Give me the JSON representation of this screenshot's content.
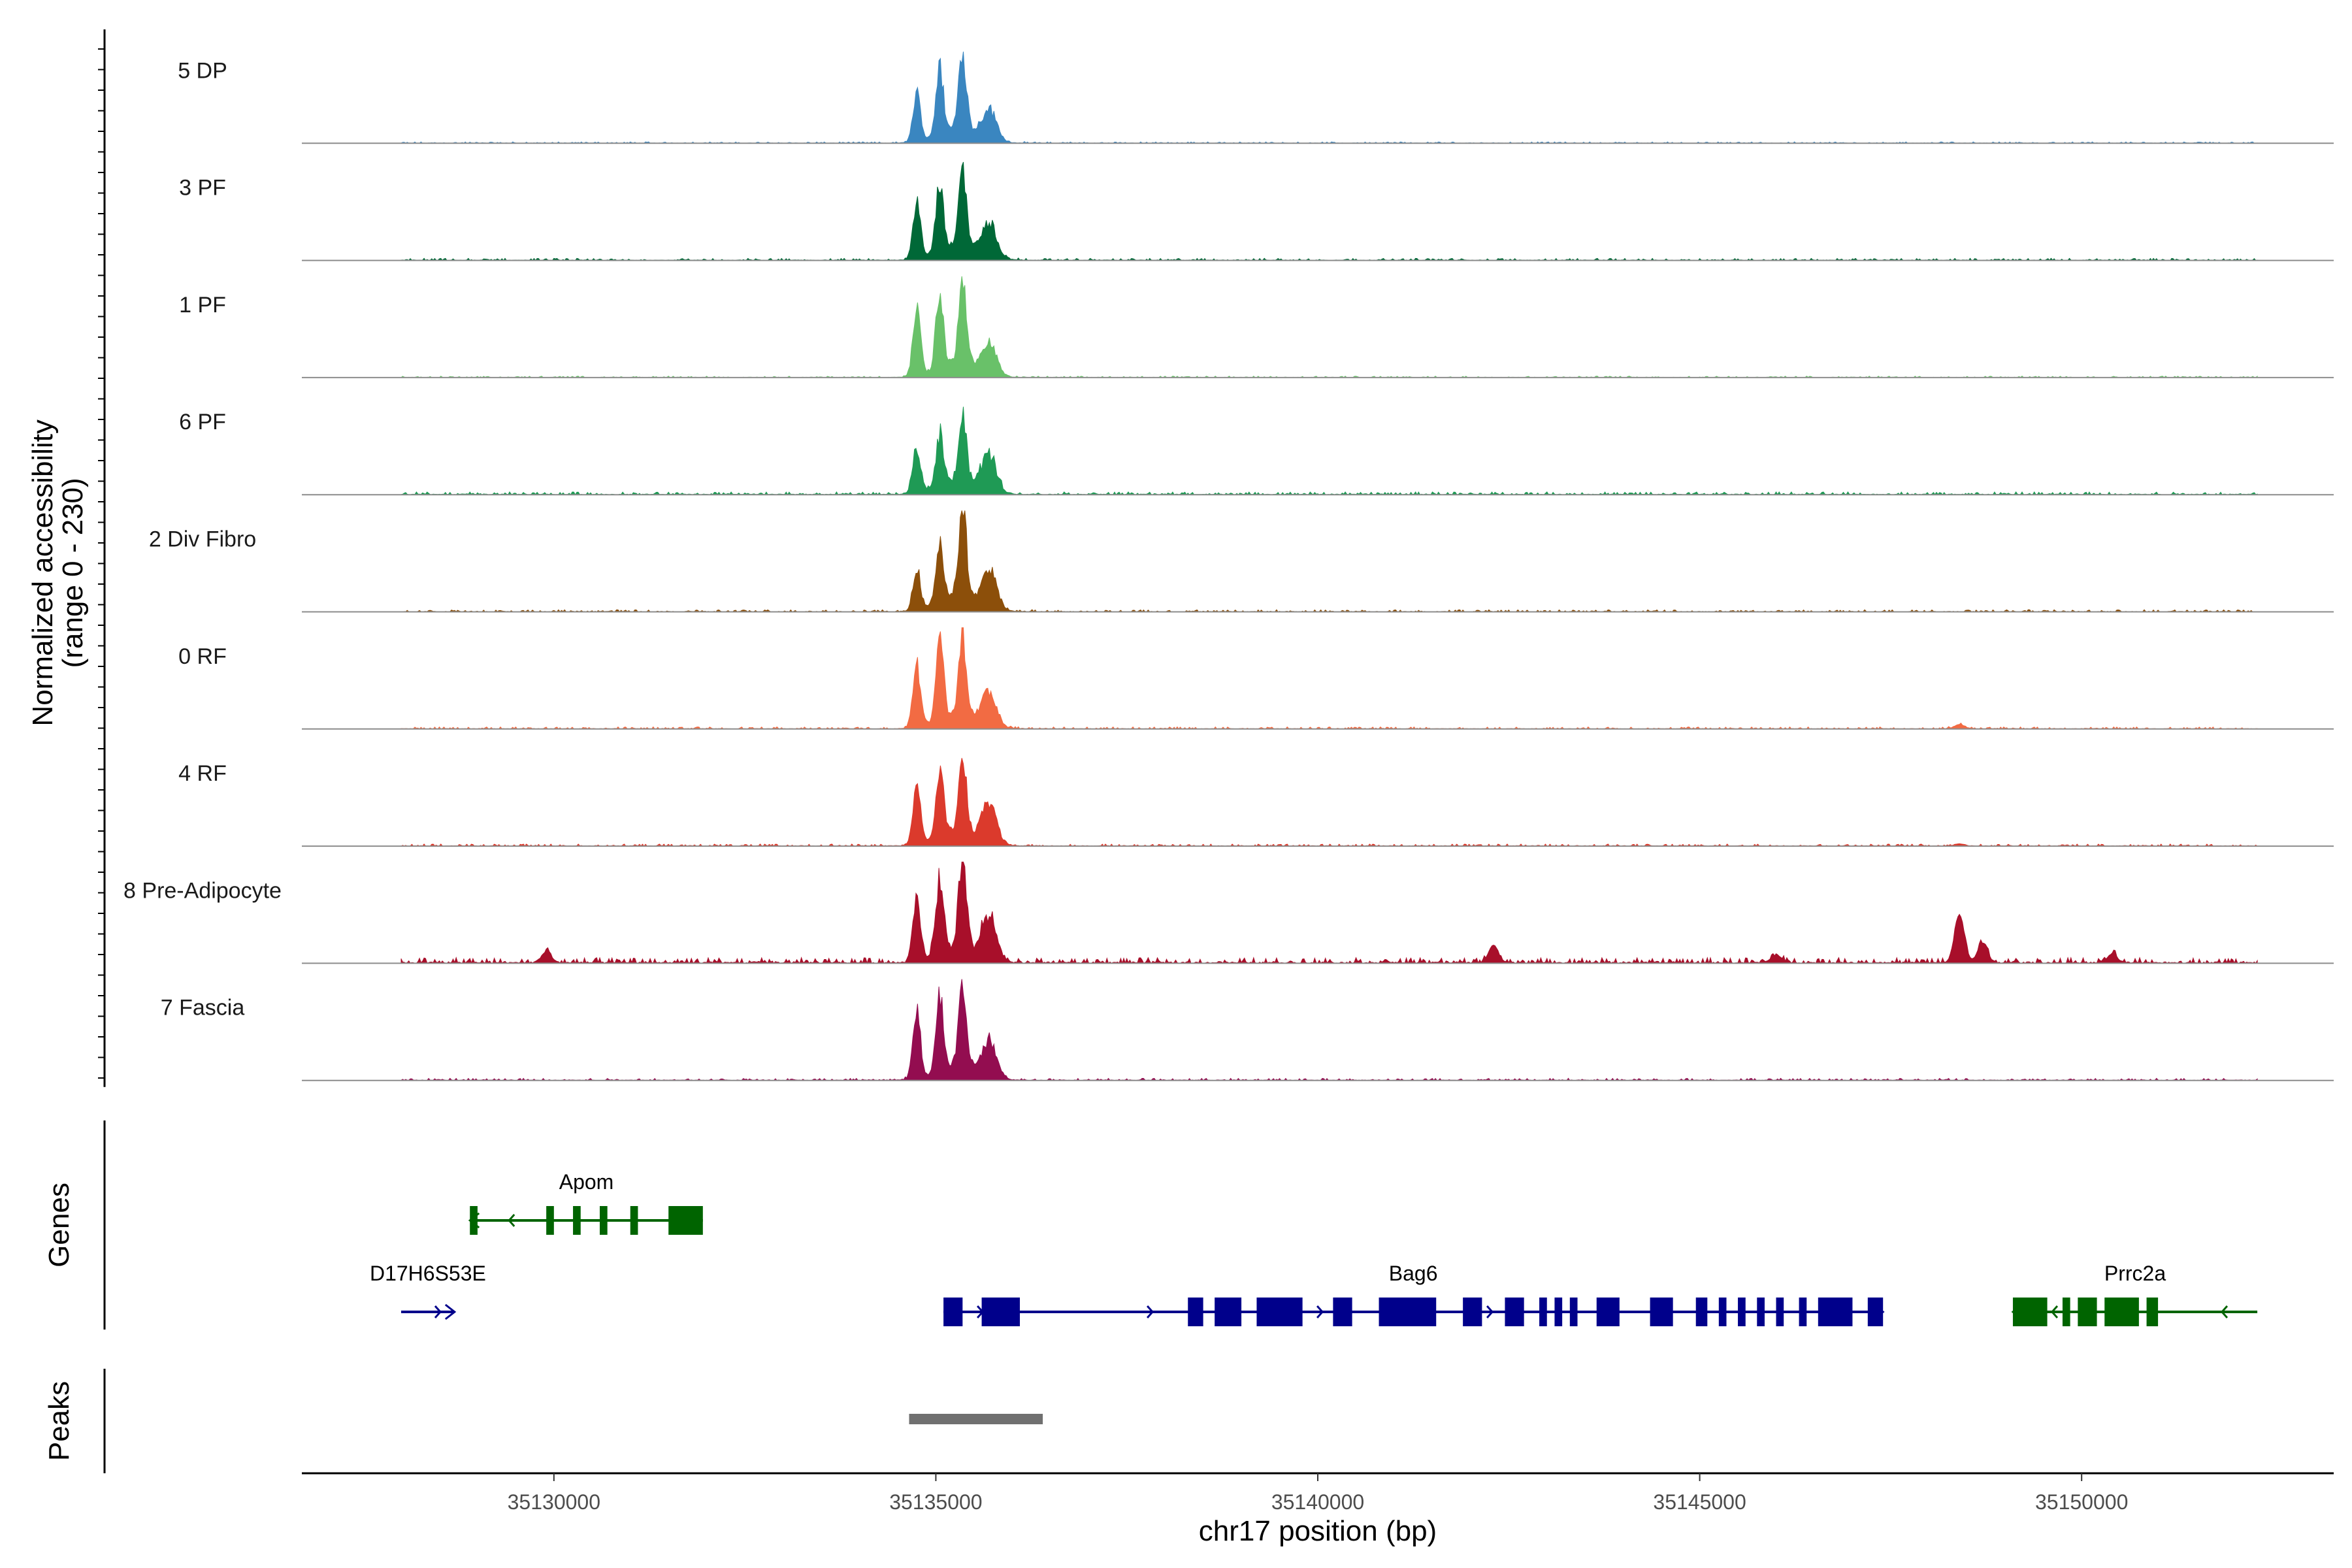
{
  "chart_data": {
    "type": "area",
    "title": "",
    "region": "chr17",
    "xlabel": "chr17 position (bp)",
    "ylabel_line1": "Normalized accessibility",
    "ylabel_line2": "(range 0 - 230)",
    "y_range": [
      0,
      230
    ],
    "x_range": [
      35126700,
      35153300
    ],
    "x_ticks": [
      35130000,
      35135000,
      35140000,
      35145000,
      35150000
    ],
    "x_tick_labels": [
      "35130000",
      "35135000",
      "35140000",
      "35145000",
      "35150000"
    ],
    "peak_summits_bp": [
      35134750,
      35135050,
      35135350,
      35135700
    ],
    "series": [
      {
        "name": "5 DP",
        "color": "#3a86c0",
        "summit_heights": [
          110,
          150,
          185,
          70
        ],
        "bg_level": 2,
        "extra_peaks": []
      },
      {
        "name": "3 PF",
        "color": "#006837",
        "summit_heights": [
          125,
          150,
          185,
          80
        ],
        "bg_level": 3,
        "extra_peaks": []
      },
      {
        "name": "1 PF",
        "color": "#69c169",
        "summit_heights": [
          150,
          170,
          185,
          70
        ],
        "bg_level": 2,
        "extra_peaks": []
      },
      {
        "name": "6 PF",
        "color": "#1f9a55",
        "summit_heights": [
          105,
          120,
          150,
          85
        ],
        "bg_level": 4,
        "extra_peaks": []
      },
      {
        "name": "2 Div Fibro",
        "color": "#8c4f0a",
        "summit_heights": [
          90,
          140,
          230,
          90
        ],
        "bg_level": 3,
        "extra_peaks": []
      },
      {
        "name": "0 RF",
        "color": "#f26b43",
        "summit_heights": [
          140,
          185,
          185,
          75
        ],
        "bg_level": 3,
        "extra_peaks": [
          [
            35148400,
            10
          ]
        ]
      },
      {
        "name": "4 RF",
        "color": "#db3a2c",
        "summit_heights": [
          140,
          165,
          180,
          90
        ],
        "bg_level": 3,
        "extra_peaks": [
          [
            35148400,
            5
          ]
        ]
      },
      {
        "name": "8 Pre-Adipocyte",
        "color": "#a80f2a",
        "summit_heights": [
          150,
          175,
          230,
          100
        ],
        "bg_level": 8,
        "extra_peaks": [
          [
            35129900,
            25
          ],
          [
            35142300,
            40
          ],
          [
            35148400,
            110
          ],
          [
            35148700,
            45
          ],
          [
            35146000,
            18
          ],
          [
            35150400,
            20
          ]
        ]
      },
      {
        "name": "7 Fascia",
        "color": "#930d50",
        "summit_heights": [
          150,
          175,
          185,
          80
        ],
        "bg_level": 3,
        "extra_peaks": []
      }
    ],
    "panels": [
      "Genes",
      "Peaks"
    ],
    "genes": [
      {
        "name": "Apom",
        "start": 35128900,
        "end": 35131950,
        "strand": "-",
        "color": "#006400",
        "row": 1,
        "exons": [
          [
            35128900,
            35129000
          ],
          [
            35129900,
            35130000
          ],
          [
            35130250,
            35130350
          ],
          [
            35130600,
            35130700
          ],
          [
            35131000,
            35131100
          ],
          [
            35131500,
            35131950
          ]
        ]
      },
      {
        "name": "D17H6S53E",
        "start": 35128000,
        "end": 35128700,
        "strand": "+",
        "color": "#00008b",
        "row": 2,
        "exons": []
      },
      {
        "name": "Bag6",
        "start": 35135100,
        "end": 35147400,
        "strand": "+",
        "color": "#00008b",
        "row": 2,
        "exons": [
          [
            35135100,
            35135350
          ],
          [
            35135600,
            35136100
          ],
          [
            35138300,
            35138500
          ],
          [
            35138650,
            35139000
          ],
          [
            35139200,
            35139800
          ],
          [
            35140200,
            35140450
          ],
          [
            35140800,
            35141550
          ],
          [
            35141900,
            35142150
          ],
          [
            35142450,
            35142700
          ],
          [
            35142900,
            35143000
          ],
          [
            35143100,
            35143200
          ],
          [
            35143300,
            35143400
          ],
          [
            35143650,
            35143950
          ],
          [
            35144350,
            35144650
          ],
          [
            35144950,
            35145100
          ],
          [
            35145250,
            35145350
          ],
          [
            35145500,
            35145600
          ],
          [
            35145750,
            35145850
          ],
          [
            35146000,
            35146100
          ],
          [
            35146300,
            35146400
          ],
          [
            35146550,
            35147000
          ],
          [
            35147200,
            35147400
          ]
        ]
      },
      {
        "name": "Prrc2a",
        "start": 35149100,
        "end": 35152300,
        "strand": "-",
        "color": "#006400",
        "row": 2,
        "exons": [
          [
            35149100,
            35149550
          ],
          [
            35149750,
            35149850
          ],
          [
            35149950,
            35150200
          ],
          [
            35150300,
            35150750
          ],
          [
            35150850,
            35151000
          ]
        ]
      }
    ],
    "peaks": [
      [
        35134650,
        35136400
      ]
    ]
  }
}
